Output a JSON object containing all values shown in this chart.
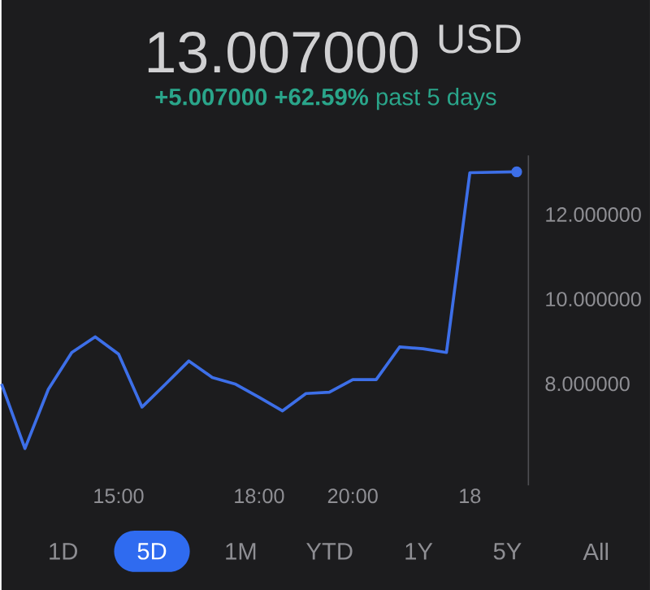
{
  "chart_data": {
    "type": "line",
    "title": "13.007000 $^{USD}$",
    "subtitle": "**+5.007000 +62.59%** past 5 days",
    "categories": [
      null,
      null,
      null,
      null,
      null,
      "15:00",
      null,
      null,
      null,
      null,
      null,
      "18:00",
      null,
      null,
      null,
      "20:00",
      null,
      null,
      null,
      null,
      "18",
      null,
      null
    ],
    "ylim": [
      5.6,
      13.4
    ],
    "yticks": [
      {
        "value": 8,
        "label": "8.000000"
      },
      {
        "value": 10,
        "label": "10.000000"
      },
      {
        "value": 12,
        "label": "12.000000"
      }
    ],
    "series": [
      {
        "color": "#3d6fe8",
        "values": [
          8.0,
          6.47,
          7.87,
          8.74,
          9.11,
          8.7,
          7.45,
          7.99,
          8.54,
          8.15,
          7.99,
          7.68,
          7.36,
          7.77,
          7.8,
          8.1,
          8.1,
          8.87,
          8.83,
          8.74,
          12.99,
          13.0,
          13.01
        ]
      }
    ],
    "marker": "none",
    "line_style": "solid",
    "annotations": [
      "1D",
      "5D",
      "1M",
      "YTD",
      "1Y",
      "5Y",
      "All"
    ]
  }
}
